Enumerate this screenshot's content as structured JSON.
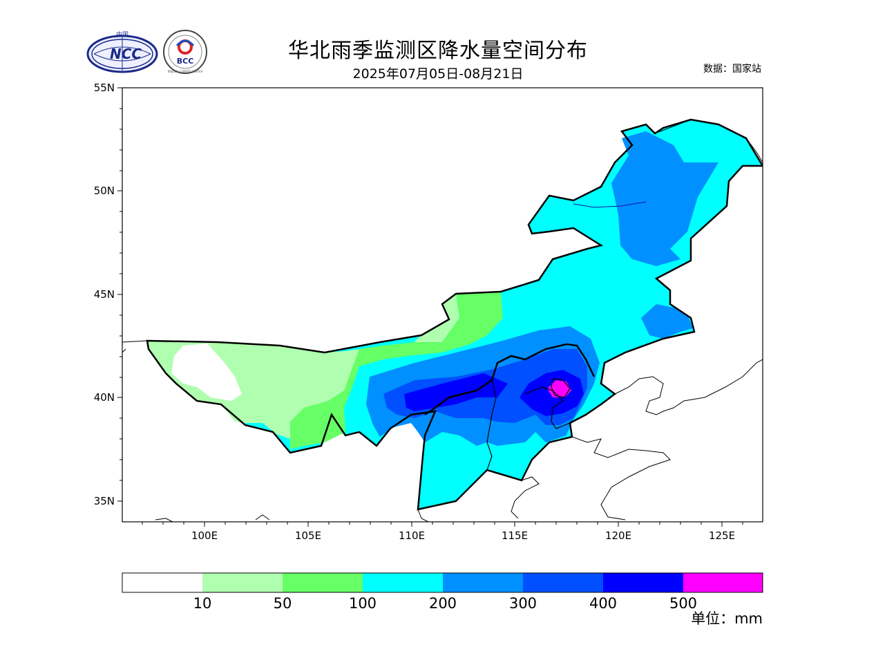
{
  "title": "华北雨季监测区降水量空间分布",
  "subtitle": "2025年07月05日-08月21日",
  "source": "数据：国家站",
  "logos": {
    "ncc_top": "中国",
    "ncc_text": "NCC",
    "bcc_text": "BCC",
    "bcc_ring": "BEIJING CLIMATE CENTER"
  },
  "map": {
    "lat_ticks": [
      "55N",
      "50N",
      "45N",
      "40N",
      "35N"
    ],
    "lon_ticks": [
      "100E",
      "105E",
      "110E",
      "115E",
      "120E",
      "125E"
    ]
  },
  "legend": {
    "colors": [
      "#ffffff",
      "#b0ffb0",
      "#66ff66",
      "#00ffff",
      "#0090ff",
      "#0050ff",
      "#0000ff",
      "#ff00ff"
    ],
    "labels": [
      "10",
      "50",
      "100",
      "200",
      "300",
      "400",
      "500"
    ],
    "unit": "单位：mm"
  }
}
